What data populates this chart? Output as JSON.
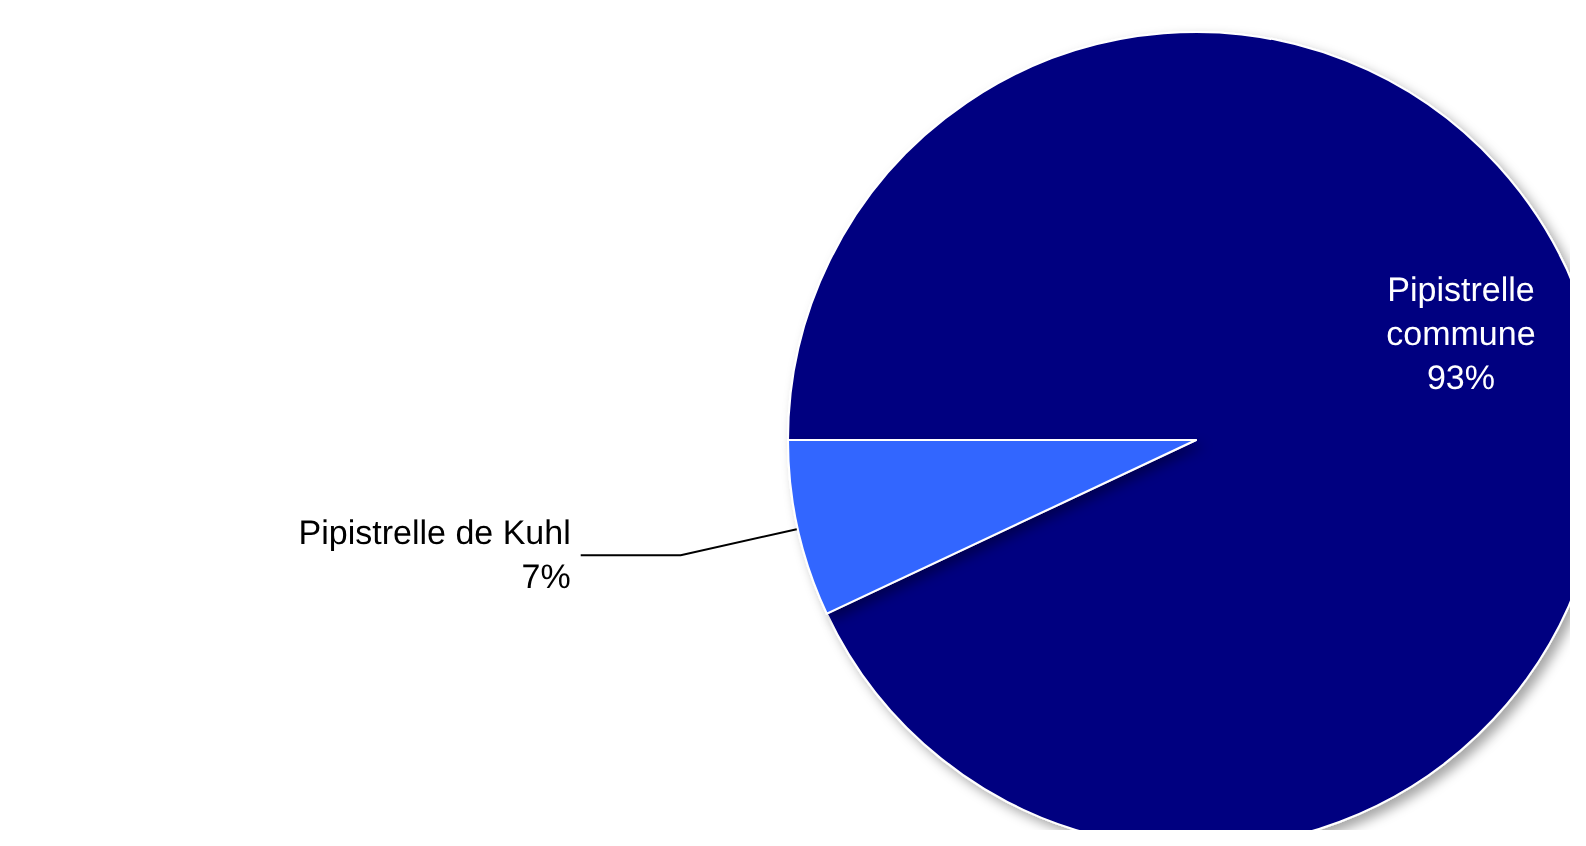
{
  "chart_data": {
    "type": "pie",
    "categories": [
      "Pipistrelle commune",
      "Pipistrelle de Kuhl"
    ],
    "values": [
      93,
      7
    ],
    "colors": [
      "#000080",
      "#3366ff"
    ],
    "value_labels": [
      "93%",
      "7%"
    ]
  }
}
